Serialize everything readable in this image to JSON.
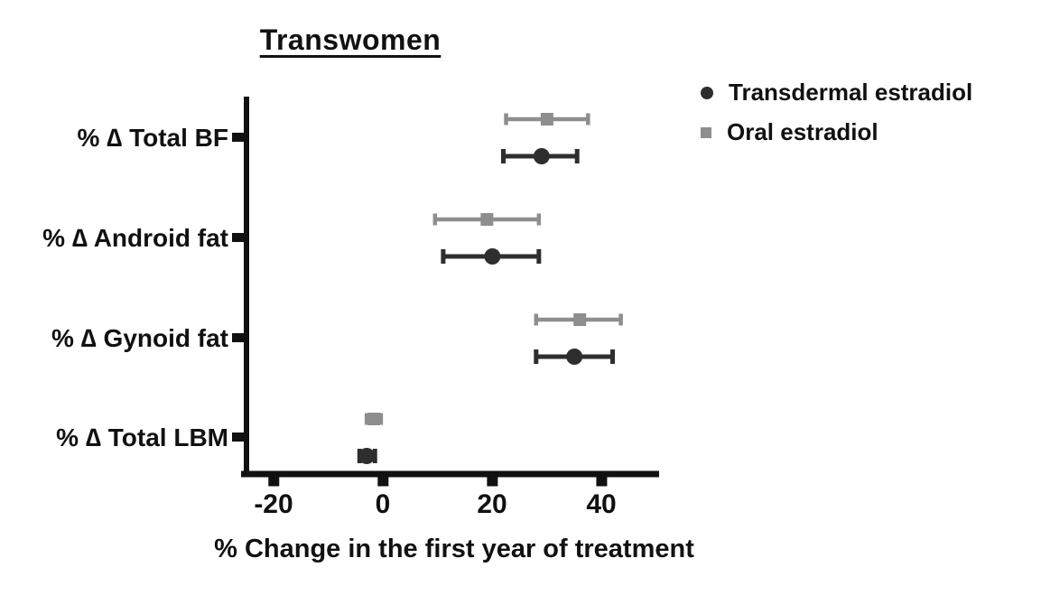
{
  "chart_data": {
    "type": "scatter",
    "subtype": "forest-plot-with-error-bars",
    "title": "Transwomen",
    "xlabel": "% Change in the first year of treatment",
    "xlim": [
      -25,
      50.5
    ],
    "xticks": [
      -20,
      0,
      20,
      40
    ],
    "xtick_labels": [
      "-20",
      "0",
      "20",
      "40"
    ],
    "categories": [
      "% ∆ Total BF",
      "% ∆ Android fat",
      "% ∆ Gynoid fat",
      "% ∆ Total LBM"
    ],
    "grid": false,
    "legend_position": "top-right",
    "axis_color": "#111111",
    "series": [
      {
        "name": "Transdermal estradiol",
        "marker": "circle",
        "color": "#2e2e2e",
        "means": [
          29,
          20,
          35,
          -3
        ],
        "ci_low": [
          22,
          11,
          28,
          -4.3
        ],
        "ci_high": [
          35.5,
          28.5,
          42,
          -1.5
        ]
      },
      {
        "name": "Oral estradiol",
        "marker": "square",
        "color": "#8e8e8e",
        "means": [
          30,
          19,
          36,
          -1.7
        ],
        "ci_low": [
          22.5,
          9.5,
          28,
          -3
        ],
        "ci_high": [
          37.5,
          28.5,
          43.5,
          -0.4
        ]
      }
    ]
  }
}
